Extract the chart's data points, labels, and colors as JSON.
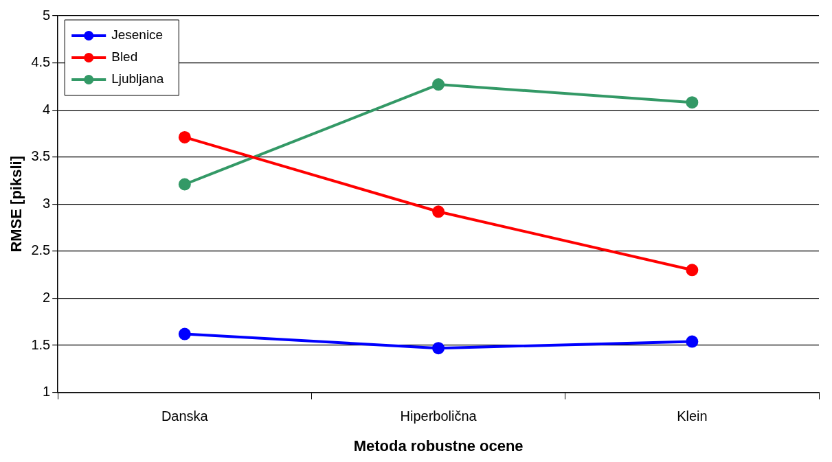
{
  "chart_data": {
    "type": "line",
    "xlabel": "Metoda robustne ocene",
    "ylabel": "RMSE [piksli]",
    "categories": [
      "Danska",
      "Hiperbolična",
      "Klein"
    ],
    "series": [
      {
        "name": "Jesenice",
        "color": "#0000ff",
        "values": [
          1.62,
          1.47,
          1.54
        ]
      },
      {
        "name": "Bled",
        "color": "#ff0000",
        "values": [
          3.71,
          2.92,
          2.3
        ]
      },
      {
        "name": "Ljubljana",
        "color": "#339966",
        "values": [
          3.21,
          4.27,
          4.08
        ]
      }
    ],
    "ylim": [
      1,
      5
    ],
    "yticks": [
      1,
      1.5,
      2,
      2.5,
      3,
      3.5,
      4,
      4.5,
      5
    ],
    "grid": "y",
    "legend": "top left",
    "marker": "circle",
    "line_style": "solid"
  }
}
